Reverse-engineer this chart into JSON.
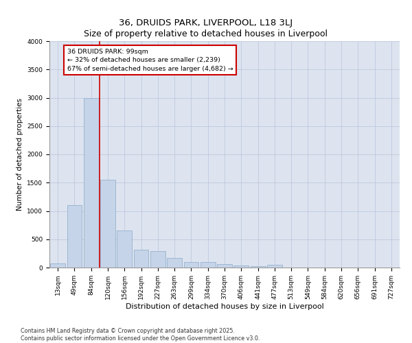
{
  "title": "36, DRUIDS PARK, LIVERPOOL, L18 3LJ",
  "subtitle": "Size of property relative to detached houses in Liverpool",
  "xlabel": "Distribution of detached houses by size in Liverpool",
  "ylabel": "Number of detached properties",
  "background_color": "#dde4f0",
  "bar_color": "#c5d4e8",
  "bar_edge_color": "#8aaac8",
  "categories": [
    "13sqm",
    "49sqm",
    "84sqm",
    "120sqm",
    "156sqm",
    "192sqm",
    "227sqm",
    "263sqm",
    "299sqm",
    "334sqm",
    "370sqm",
    "406sqm",
    "441sqm",
    "477sqm",
    "513sqm",
    "549sqm",
    "584sqm",
    "620sqm",
    "656sqm",
    "691sqm",
    "727sqm"
  ],
  "values": [
    75,
    1100,
    3000,
    1550,
    660,
    310,
    295,
    175,
    100,
    95,
    60,
    35,
    30,
    50,
    5,
    0,
    0,
    0,
    0,
    0,
    0
  ],
  "ylim": [
    0,
    4000
  ],
  "yticks": [
    0,
    500,
    1000,
    1500,
    2000,
    2500,
    3000,
    3500,
    4000
  ],
  "vline_x": 2.5,
  "annotation_text": "36 DRUIDS PARK: 99sqm\n← 32% of detached houses are smaller (2,239)\n67% of semi-detached houses are larger (4,682) →",
  "annotation_box_color": "#cc0000",
  "footnote1": "Contains HM Land Registry data © Crown copyright and database right 2025.",
  "footnote2": "Contains public sector information licensed under the Open Government Licence v3.0.",
  "grid_color": "#b8c4d8",
  "title_fontsize": 9.5,
  "xlabel_fontsize": 8,
  "ylabel_fontsize": 7.5,
  "tick_fontsize": 6.5,
  "annotation_fontsize": 6.8,
  "footnote_fontsize": 5.8
}
